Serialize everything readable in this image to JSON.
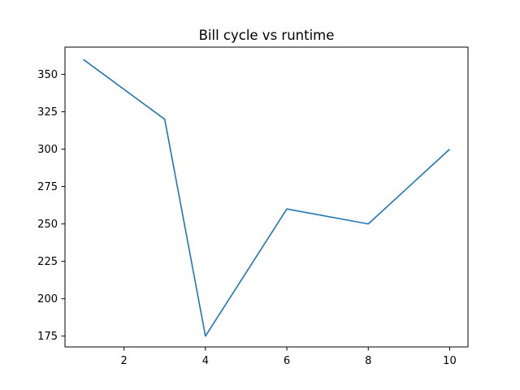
{
  "chart_data": {
    "type": "line",
    "title": "Bill cycle vs runtime",
    "xlabel": "",
    "ylabel": "",
    "grid": false,
    "x": [
      1,
      3,
      4,
      6,
      8,
      10
    ],
    "series": [
      {
        "values": [
          360,
          320,
          175,
          260,
          250,
          300
        ],
        "color": "#1f77b4"
      }
    ],
    "xlim": [
      0.55,
      10.45
    ],
    "ylim": [
      167.75,
      368.25
    ],
    "xticks": [
      2,
      4,
      6,
      8,
      10
    ],
    "yticks": [
      175,
      200,
      225,
      250,
      275,
      300,
      325,
      350
    ]
  }
}
